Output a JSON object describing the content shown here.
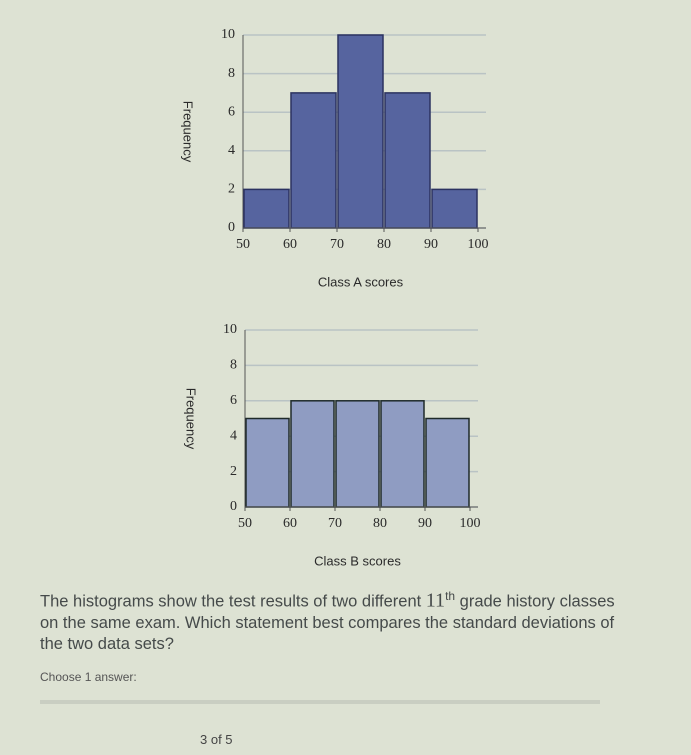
{
  "chart_data": [
    {
      "type": "histogram",
      "xlabel": "Class A scores",
      "ylabel": "Frequency",
      "bins": [
        50,
        60,
        70,
        80,
        90,
        100
      ],
      "values": [
        2,
        7,
        10,
        7,
        2
      ],
      "color": "#56649f",
      "xlim": [
        50,
        100
      ],
      "xticks": [
        50,
        60,
        70,
        80,
        90,
        100
      ],
      "ylim": [
        0,
        10
      ],
      "yticks": [
        0,
        2,
        4,
        6,
        8,
        10
      ],
      "grid": true
    },
    {
      "type": "histogram",
      "xlabel": "Class B scores",
      "ylabel": "Frequency",
      "bins": [
        50,
        60,
        70,
        80,
        90,
        100
      ],
      "values": [
        5,
        6,
        6,
        6,
        5
      ],
      "color": "#8f9cc2",
      "xlim": [
        50,
        100
      ],
      "xticks": [
        50,
        60,
        70,
        80,
        90,
        100
      ],
      "ylim": [
        0,
        10
      ],
      "yticks": [
        0,
        2,
        4,
        6,
        8,
        10
      ],
      "grid": true
    }
  ],
  "question": {
    "before": "The histograms show the test results of two different ",
    "ordinal": "11",
    "suffix": "th",
    "after": " grade history classes on the same exam. Which statement best compares the standard deviations of the two data sets?"
  },
  "prompt": "Choose 1 answer:",
  "progress": "3 of 5"
}
